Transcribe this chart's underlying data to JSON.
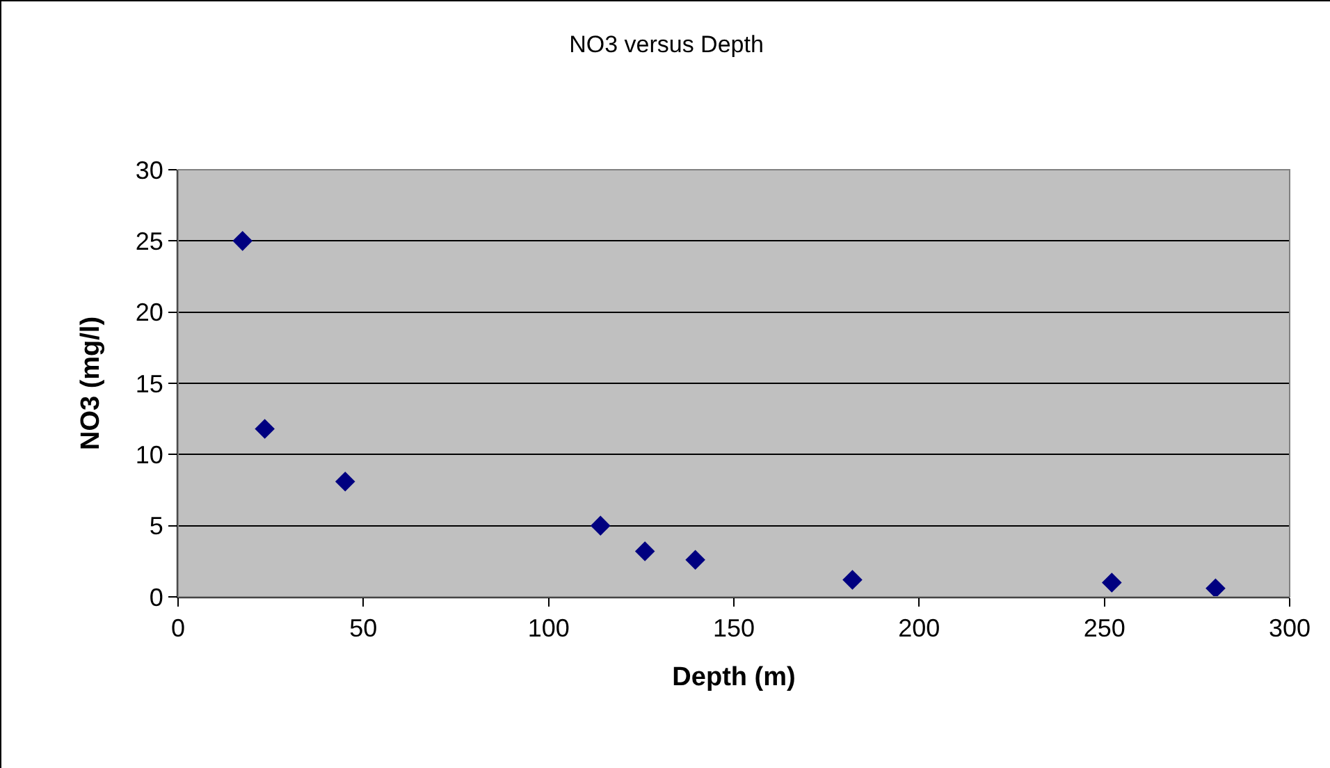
{
  "chart_data": {
    "type": "scatter",
    "title": "NO3 versus Depth",
    "xlabel": "Depth (m)",
    "ylabel": "NO3 (mg/l)",
    "x": [
      17.4,
      23.4,
      45.1,
      114,
      126,
      139.6,
      182,
      252,
      280
    ],
    "series": [
      {
        "color": "#000080",
        "values": [
          25,
          11.8,
          8.1,
          5,
          3.2,
          2.6,
          1.2,
          1.0,
          0.6
        ]
      }
    ],
    "xlim": [
      0,
      300
    ],
    "xticks": [
      0,
      50,
      100,
      150,
      200,
      250,
      300
    ],
    "ylim": [
      0,
      30
    ],
    "yticks": [
      0,
      5,
      10,
      15,
      20,
      25,
      30
    ],
    "grid": "y",
    "marker": "diamond"
  }
}
